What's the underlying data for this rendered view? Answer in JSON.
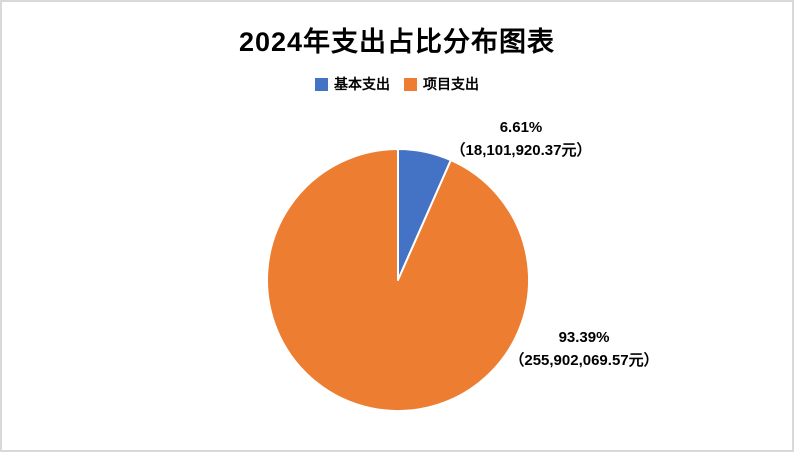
{
  "page": {
    "background": "#FFFFFF",
    "border_color": "#D9D9D9"
  },
  "chart_data": {
    "type": "pie",
    "title": "2024年支出占比分布图表",
    "legend_position": "top",
    "start_angle_deg": 0,
    "direction": "clockwise",
    "slice_border_color": "#FFFFFF",
    "slices": [
      {
        "label": "基本支出",
        "percent": 6.61,
        "percent_text": "6.61%",
        "value": 18101920.37,
        "value_text": "（18,101,920.37元）",
        "color": "#4472C4"
      },
      {
        "label": "项目支出",
        "percent": 93.39,
        "percent_text": "93.39%",
        "value": 255902069.57,
        "value_text": "（255,902,069.57元）",
        "color": "#ED7D31"
      }
    ]
  }
}
